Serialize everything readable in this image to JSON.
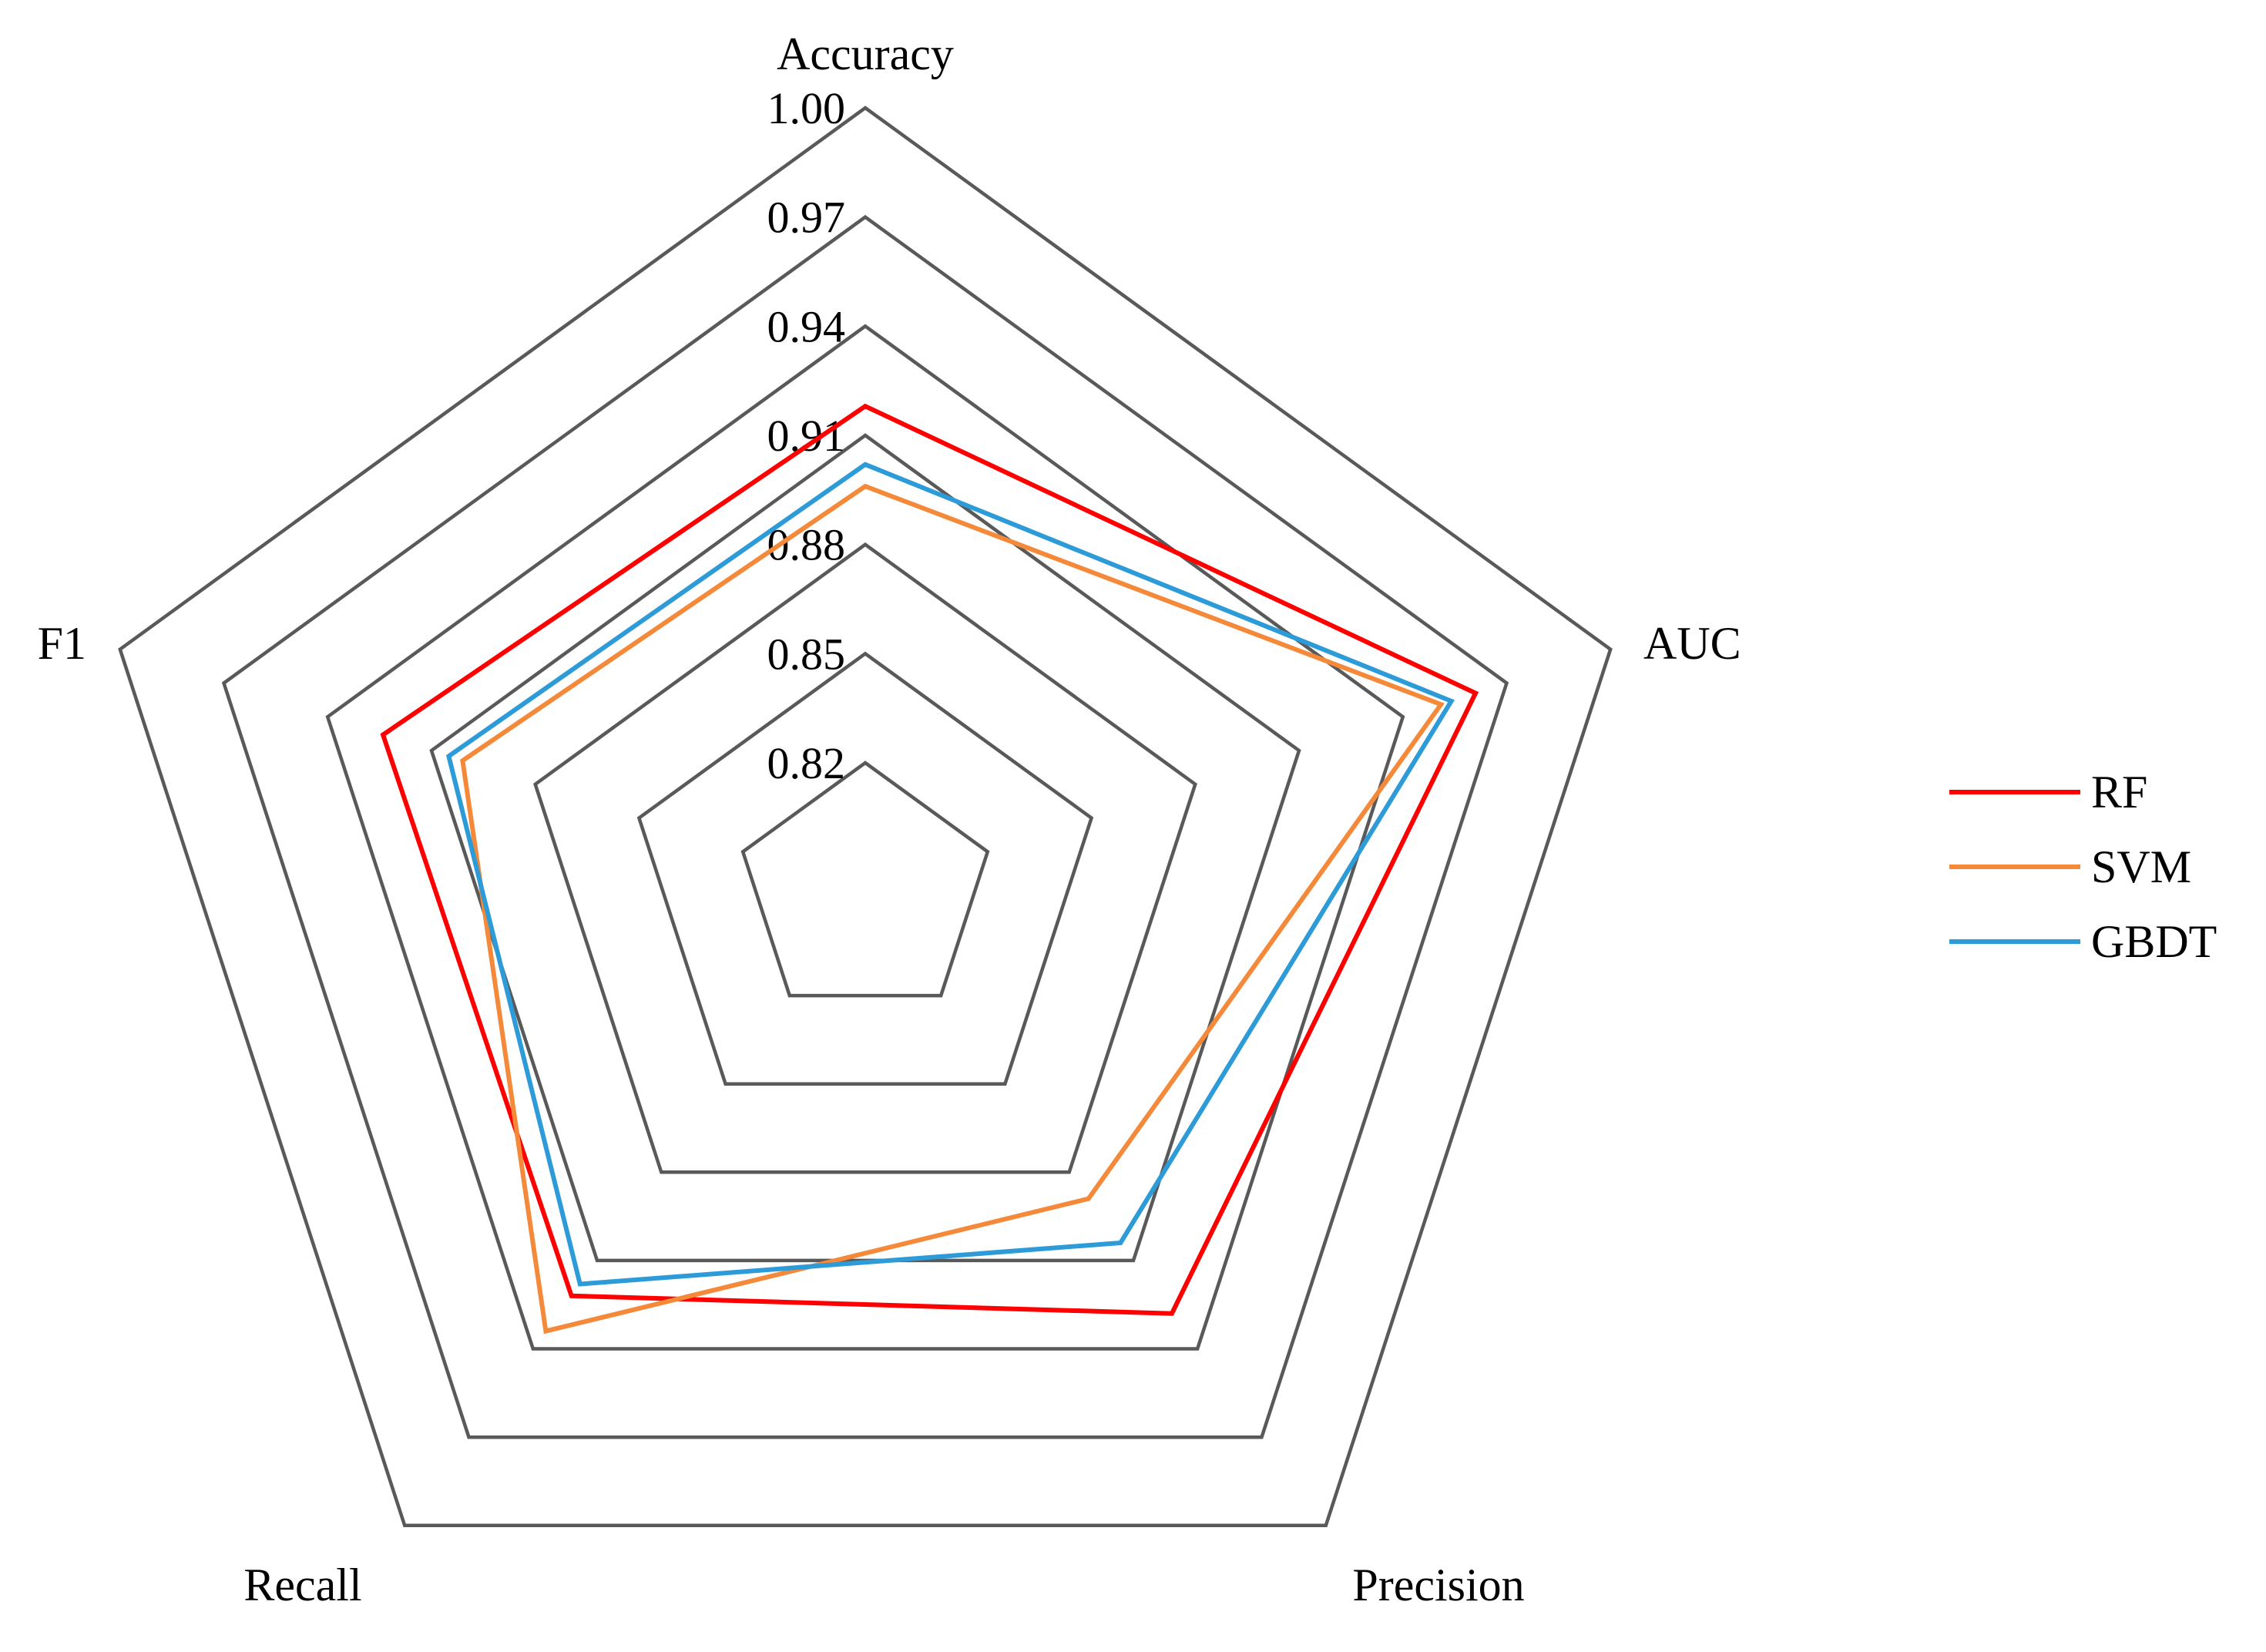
{
  "chart_data": {
    "type": "radar",
    "axes": [
      "Accuracy",
      "AUC",
      "Precision",
      "Recall",
      "F1"
    ],
    "rlim": [
      0.82,
      1.0
    ],
    "ticks": [
      "0.82",
      "0.85",
      "0.88",
      "0.91",
      "0.94",
      "0.97",
      "1.00"
    ],
    "tick_values": [
      0.82,
      0.85,
      0.88,
      0.91,
      0.94,
      0.97,
      1.0
    ],
    "grid": true,
    "legend_position": "right",
    "series": [
      {
        "name": "RF",
        "color": "#ff0000",
        "values": [
          0.918,
          0.961,
          0.928,
          0.922,
          0.924
        ]
      },
      {
        "name": "SVM",
        "color": "#f5893a",
        "values": [
          0.896,
          0.951,
          0.889,
          0.934,
          0.901
        ]
      },
      {
        "name": "GBDT",
        "color": "#2d9bd7",
        "values": [
          0.902,
          0.954,
          0.904,
          0.918,
          0.905
        ]
      }
    ]
  }
}
